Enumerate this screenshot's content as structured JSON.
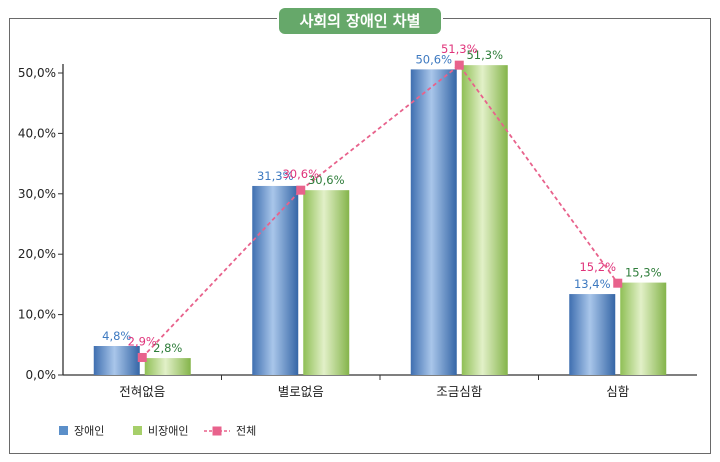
{
  "chart_data": {
    "type": "bar",
    "title": "사회의 장애인 차별",
    "categories": [
      "전혀없음",
      "별로없음",
      "조금심함",
      "심함"
    ],
    "series": [
      {
        "name": "장애인",
        "kind": "bar",
        "values": [
          4.8,
          31.3,
          50.6,
          13.4
        ],
        "labels": [
          "4,8%",
          "31,3%",
          "50,6%",
          "13,4%"
        ],
        "color": "#5b8fc9"
      },
      {
        "name": "비장애인",
        "kind": "bar",
        "values": [
          2.8,
          30.6,
          51.3,
          15.3
        ],
        "labels": [
          "2,8%",
          "30,6%",
          "51,3%",
          "15,3%"
        ],
        "color": "#a6cf6a"
      },
      {
        "name": "전체",
        "kind": "line",
        "values": [
          2.9,
          30.6,
          51.3,
          15.2
        ],
        "labels": [
          "2,9%",
          "30,6%",
          "51,3%",
          "15,2%"
        ],
        "color": "#e8628c"
      }
    ],
    "y_ticks": [
      "0,0%",
      "10,0%",
      "20,0%",
      "30,0%",
      "40,0%",
      "50,0%"
    ],
    "ylim": [
      0,
      50
    ],
    "grid": false,
    "legend_position": "bottom-left"
  },
  "colors": {
    "label_disabled": "#3d79c0",
    "label_nondisabled": "#2e7d3a",
    "label_total": "#e0337a",
    "title_bg": "#66a86a"
  }
}
